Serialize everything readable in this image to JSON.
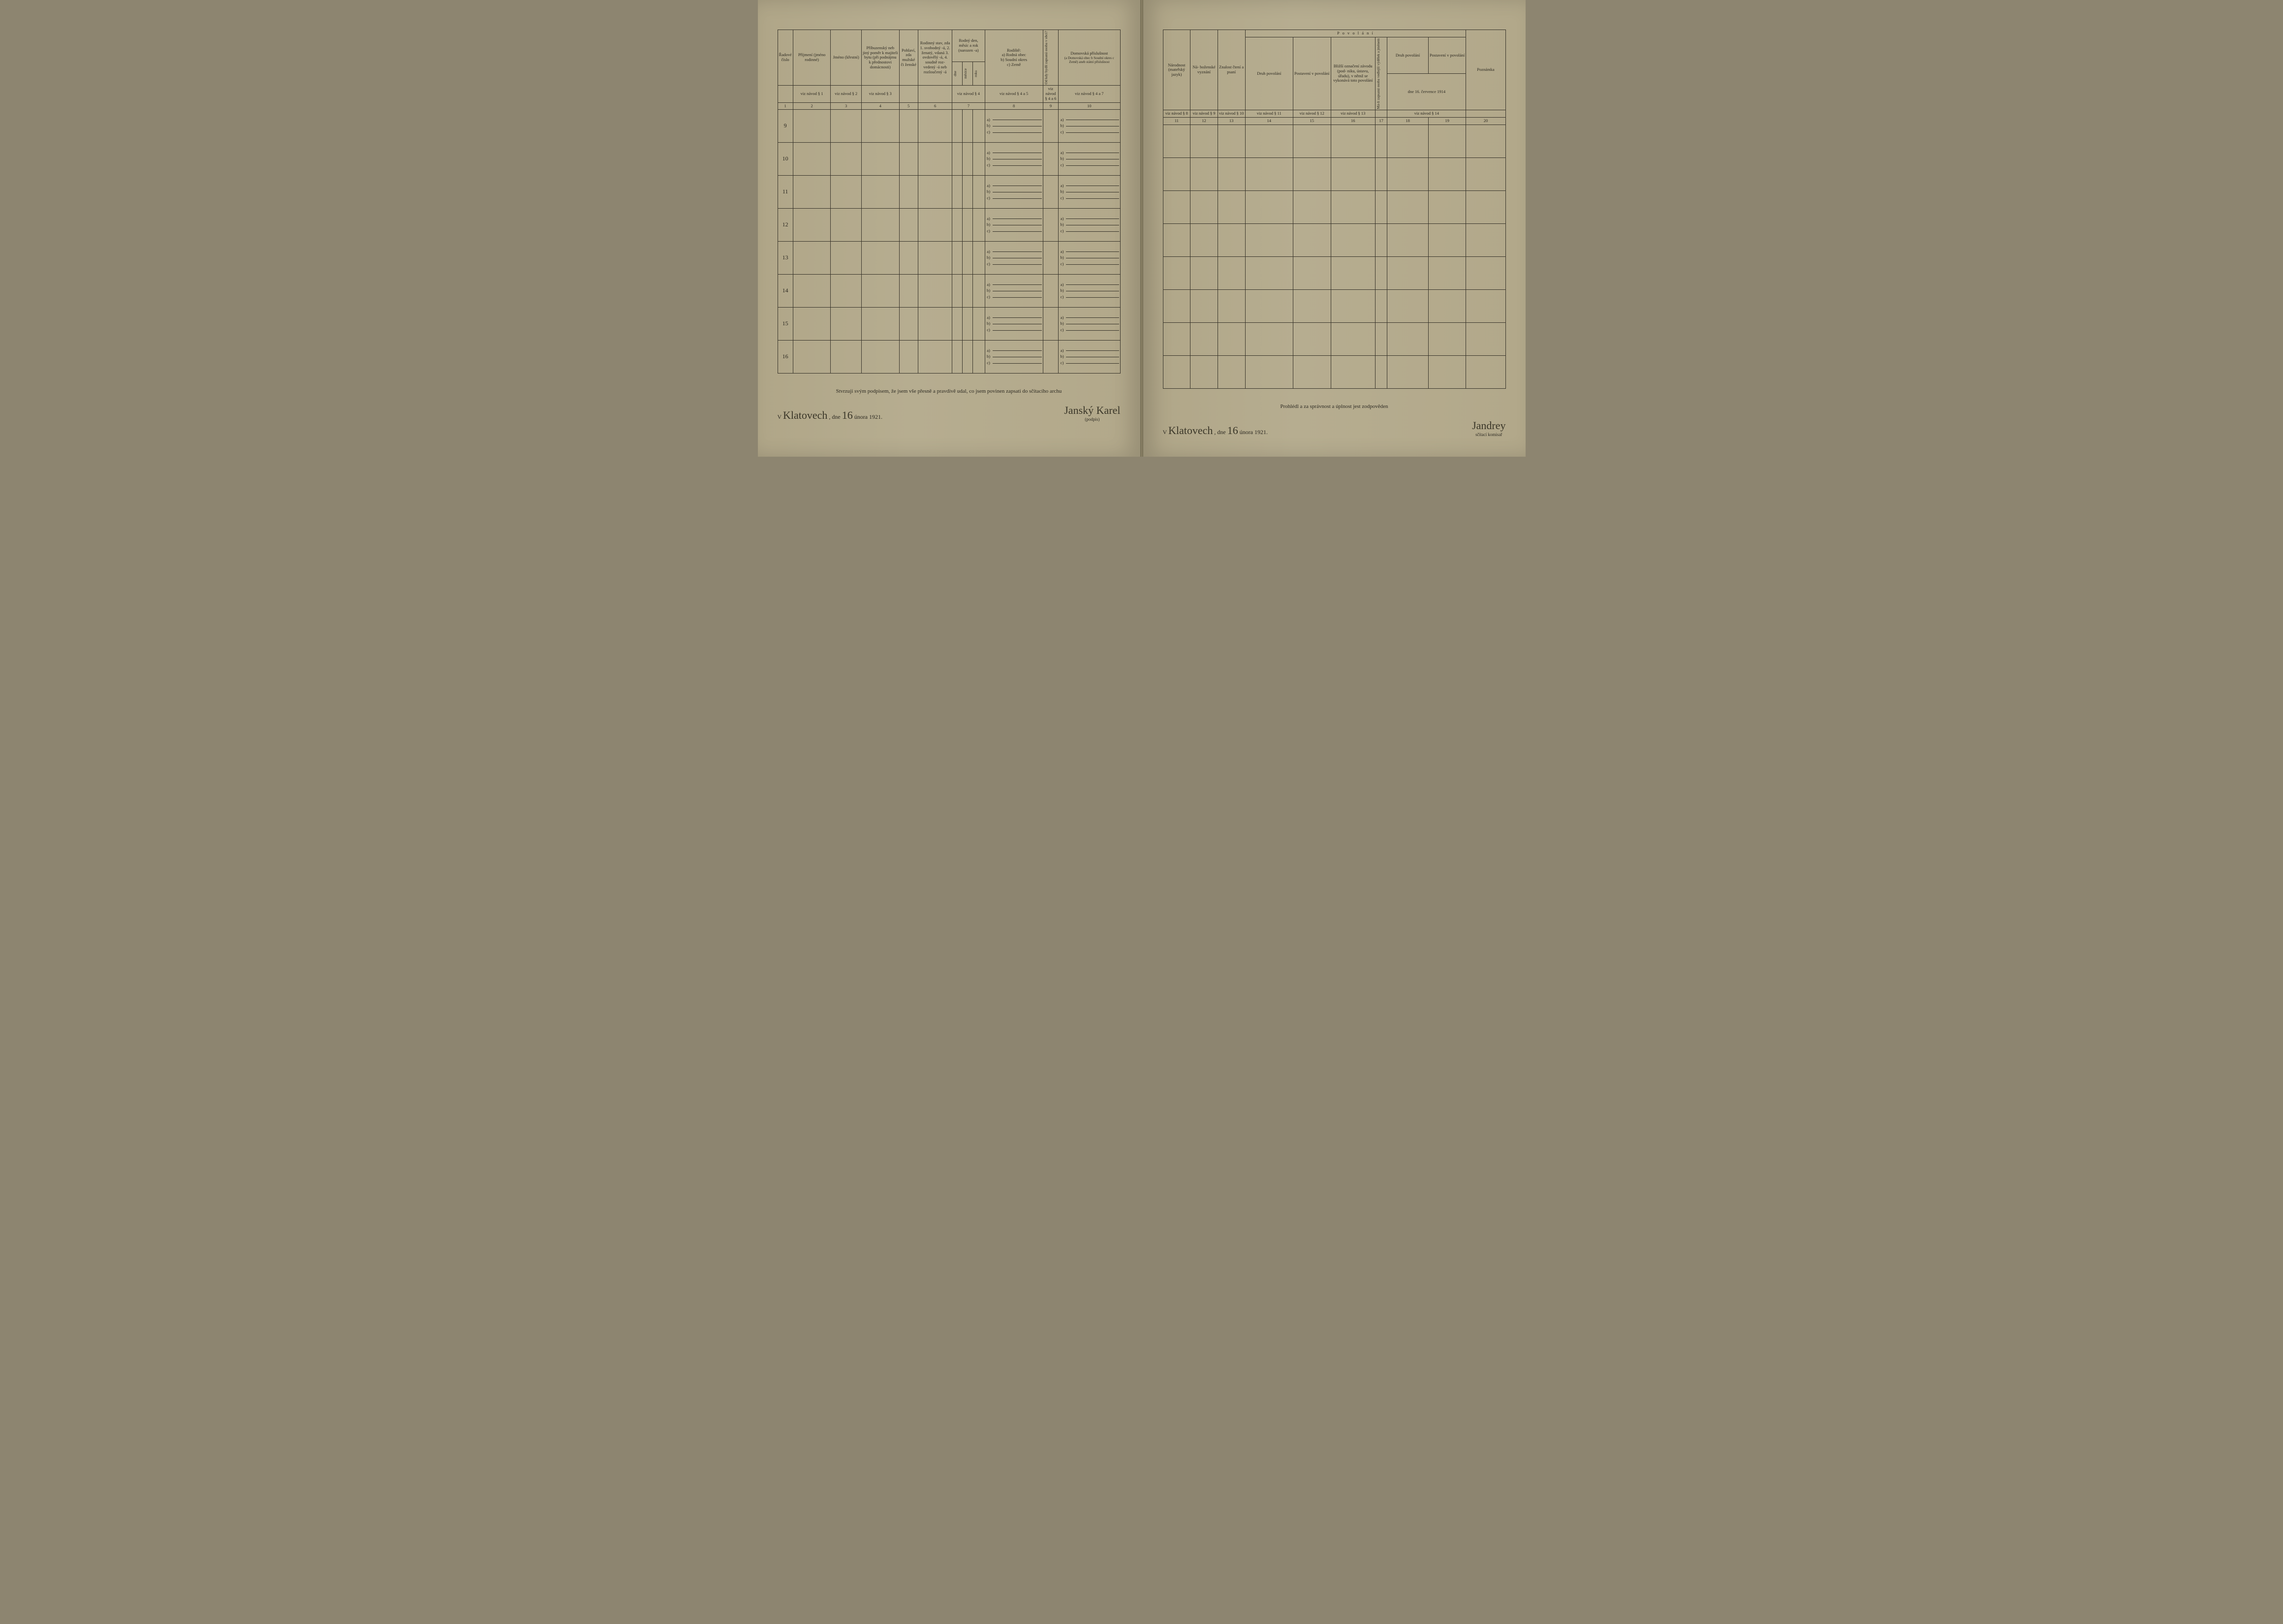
{
  "left": {
    "headers": {
      "c1": "Řadové číslo",
      "c2": "Příjmení (jméno rodinné)",
      "c3": "Jméno (křestní)",
      "c4": "Příbuzenský neb jiný poměr k majiteli bytu (při podnájmu k přednostovi domácnosti)",
      "c5": "Pohlaví, zda mužské či ženské",
      "c6": "Rodinný stav, zda 1. svobodný -á, 2. ženatý, vdaná 3. ovdovělý -á, 4. soudně roz- vedený -á neb rozloučený -á",
      "c7": "Rodný den, měsíc a rok (narozen -a)",
      "c7a": "dne",
      "c7b": "měsíce",
      "c7c": "roku",
      "c8": "Rodiště:",
      "c8a": "a) Rodná obec",
      "c8b": "b) Soudní okres",
      "c8c": "c) Země",
      "c9": "Od kdy bydlí zapsaná osoba v obci?",
      "c10": "Domovská příslušnost",
      "c10s": "(a Domovská obec b Soudní okres c Země) aneb státní příslušnost"
    },
    "navod": {
      "c2": "viz návod § 1",
      "c3": "viz návod § 2",
      "c4": "viz návod § 3",
      "c8": "viz návod § 4",
      "c9": "viz návod § 4 a 5",
      "c9b": "viz návod § 4 a 6",
      "c10": "viz návod § 4 a 7"
    },
    "colnums": [
      "1",
      "2",
      "3",
      "4",
      "5",
      "6",
      "7",
      "8",
      "9",
      "10"
    ],
    "rows": [
      "9",
      "10",
      "11",
      "12",
      "13",
      "14",
      "15",
      "16"
    ],
    "footer": {
      "text": "Stvrzuji svým podpisem, že jsem vše přesně a pravdivě udal, co jsem povinen zapsati do sčítacího archu",
      "place_prefix": "V",
      "place": "Klatovech",
      "date_prefix": ", dne",
      "day": "16",
      "month_year": "února 1921.",
      "sig": "Janský Karel",
      "sig_sub": "(podpis)"
    }
  },
  "right": {
    "headers": {
      "c11": "Národnost (mateřský jazyk)",
      "c12": "Ná- boženské vyznání",
      "c13": "Znalost čtení a psaní",
      "pov": "P o v o l á n í",
      "c14": "Druh povolání",
      "c15": "Postavení v povolání",
      "c16": "Bližší označení závodu (pod- niku, ústavu, úřadu), v němž se vykonává toto povolání",
      "c17r": "Má-li zapsaná osoba vedlejší výdělek a jménem",
      "c18": "Druh povolání",
      "c19": "Postavení v povolání",
      "date": "dne 16. července 1914",
      "c20": "Poznámka"
    },
    "navod": {
      "c11": "viz návod § 8",
      "c12": "viz návod § 9",
      "c13": "viz návod § 10",
      "c14": "viz návod § 11",
      "c15": "viz návod § 12",
      "c16": "viz návod § 13",
      "c18": "viz návod § 14"
    },
    "colnums": [
      "11",
      "12",
      "13",
      "14",
      "15",
      "16",
      "17",
      "18",
      "19",
      "20"
    ],
    "footer": {
      "text": "Prohlédl a za správnost a úplnost jest zodpověden",
      "place_prefix": "V",
      "place": "Klatovech",
      "date_prefix": ", dne",
      "day": "16",
      "month_year": "února 1921.",
      "sig": "Jandrey",
      "sig_sub": "sčítací komisař"
    }
  },
  "sublabels": [
    "a)",
    "b)",
    "c)"
  ],
  "colors": {
    "paper": "#b3a98d",
    "ink": "#3a362c",
    "hand": "#3a3628"
  }
}
